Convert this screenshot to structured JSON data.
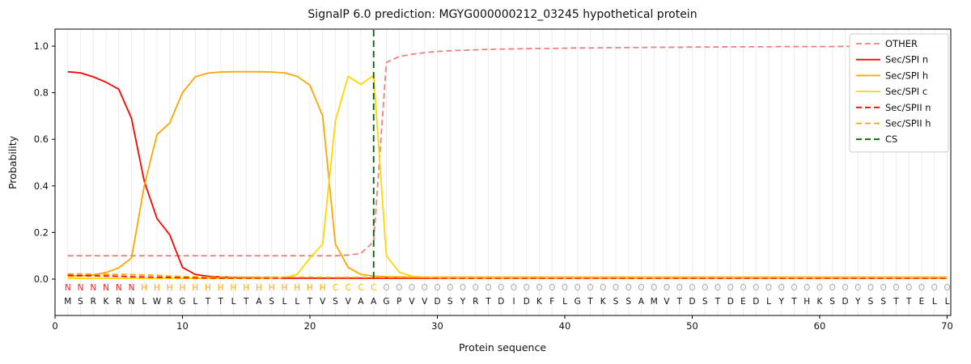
{
  "figure": {
    "title": "SignalP 6.0 prediction: MGYG000000212_03245 hypothetical protein",
    "xlabel": "Protein sequence",
    "ylabel": "Probability"
  },
  "chart_data": {
    "type": "line",
    "title": "SignalP 6.0 prediction: MGYG000000212_03245 hypothetical protein",
    "xlabel": "Protein sequence",
    "ylabel": "Probability",
    "xlim": [
      0,
      70.3
    ],
    "ylim": [
      0,
      1.05
    ],
    "x_ticks": [
      0,
      10,
      20,
      30,
      40,
      50,
      60,
      70
    ],
    "y_ticks": [
      0,
      0.2,
      0.4,
      0.6,
      0.8,
      1.0
    ],
    "grid": "light vertical gridline at every residue position",
    "legend_position": "upper right",
    "x": [
      1,
      2,
      3,
      4,
      5,
      6,
      7,
      8,
      9,
      10,
      11,
      12,
      13,
      14,
      15,
      16,
      17,
      18,
      19,
      20,
      21,
      22,
      23,
      24,
      25,
      26,
      27,
      28,
      29,
      30,
      31,
      32,
      33,
      34,
      35,
      36,
      37,
      38,
      39,
      40,
      41,
      42,
      43,
      44,
      45,
      46,
      47,
      48,
      49,
      50,
      51,
      52,
      53,
      54,
      55,
      56,
      57,
      58,
      59,
      60,
      61,
      62,
      63,
      64,
      65,
      66,
      67,
      68,
      69,
      70
    ],
    "series": [
      {
        "name": "OTHER",
        "style": "dashed",
        "color": "#f08080",
        "values": [
          0.1,
          0.1,
          0.1,
          0.1,
          0.1,
          0.1,
          0.1,
          0.1,
          0.1,
          0.1,
          0.1,
          0.1,
          0.1,
          0.1,
          0.1,
          0.1,
          0.1,
          0.1,
          0.1,
          0.1,
          0.1,
          0.1,
          0.103,
          0.11,
          0.16,
          0.93,
          0.955,
          0.965,
          0.972,
          0.977,
          0.98,
          0.982,
          0.984,
          0.986,
          0.987,
          0.988,
          0.989,
          0.99,
          0.99,
          0.991,
          0.992,
          0.992,
          0.993,
          0.993,
          0.994,
          0.994,
          0.995,
          0.995,
          0.995,
          0.996,
          0.996,
          0.996,
          0.997,
          0.997,
          0.997,
          0.997,
          0.998,
          0.998,
          0.998,
          0.998,
          0.998,
          0.999,
          0.999,
          0.999,
          0.999,
          0.999,
          0.999,
          0.999,
          0.999,
          0.999
        ]
      },
      {
        "name": "Sec/SPI n",
        "style": "solid",
        "color": "#ff0000",
        "values": [
          0.89,
          0.885,
          0.868,
          0.845,
          0.815,
          0.69,
          0.42,
          0.26,
          0.19,
          0.05,
          0.02,
          0.012,
          0.009,
          0.007,
          0.006,
          0.005,
          0.005,
          0.004,
          0.004,
          0.004,
          0.004,
          0.004,
          0.004,
          0.004,
          0.004,
          0.004,
          0.004,
          0.004,
          0.004,
          0.004,
          0.004,
          0.004,
          0.004,
          0.004,
          0.004,
          0.004,
          0.004,
          0.004,
          0.004,
          0.004,
          0.004,
          0.004,
          0.004,
          0.004,
          0.004,
          0.004,
          0.004,
          0.004,
          0.004,
          0.004,
          0.004,
          0.004,
          0.004,
          0.004,
          0.004,
          0.004,
          0.004,
          0.004,
          0.004,
          0.004,
          0.004,
          0.004,
          0.004,
          0.004,
          0.004,
          0.004,
          0.004,
          0.004,
          0.004,
          0.004
        ]
      },
      {
        "name": "Sec/SPI h",
        "style": "solid",
        "color": "#ffa500",
        "values": [
          0.012,
          0.014,
          0.018,
          0.028,
          0.048,
          0.09,
          0.4,
          0.62,
          0.67,
          0.8,
          0.868,
          0.884,
          0.889,
          0.89,
          0.89,
          0.89,
          0.889,
          0.885,
          0.87,
          0.832,
          0.7,
          0.15,
          0.05,
          0.02,
          0.013,
          0.01,
          0.009,
          0.008,
          0.008,
          0.008,
          0.008,
          0.008,
          0.008,
          0.008,
          0.008,
          0.008,
          0.008,
          0.008,
          0.008,
          0.008,
          0.008,
          0.008,
          0.008,
          0.008,
          0.008,
          0.008,
          0.008,
          0.008,
          0.008,
          0.008,
          0.008,
          0.008,
          0.008,
          0.008,
          0.008,
          0.008,
          0.008,
          0.008,
          0.008,
          0.008,
          0.008,
          0.008,
          0.008,
          0.008,
          0.008,
          0.008,
          0.008,
          0.008,
          0.008,
          0.008
        ]
      },
      {
        "name": "Sec/SPI c",
        "style": "solid",
        "color": "#ffd700",
        "values": [
          0.003,
          0.003,
          0.003,
          0.003,
          0.003,
          0.003,
          0.003,
          0.003,
          0.003,
          0.003,
          0.003,
          0.003,
          0.003,
          0.003,
          0.003,
          0.003,
          0.004,
          0.006,
          0.02,
          0.09,
          0.15,
          0.68,
          0.87,
          0.835,
          0.875,
          0.1,
          0.03,
          0.012,
          0.008,
          0.006,
          0.005,
          0.005,
          0.005,
          0.005,
          0.005,
          0.005,
          0.005,
          0.005,
          0.005,
          0.005,
          0.005,
          0.005,
          0.005,
          0.005,
          0.005,
          0.005,
          0.005,
          0.005,
          0.005,
          0.005,
          0.005,
          0.005,
          0.005,
          0.005,
          0.005,
          0.005,
          0.005,
          0.005,
          0.005,
          0.005,
          0.005,
          0.005,
          0.005,
          0.005,
          0.005,
          0.005,
          0.005,
          0.005,
          0.005,
          0.005
        ]
      },
      {
        "name": "Sec/SPII n",
        "style": "dashed",
        "color": "#ff0000",
        "values": [
          0.016,
          0.015,
          0.014,
          0.013,
          0.012,
          0.01,
          0.009,
          0.008,
          0.007,
          0.006,
          0.005,
          0.005,
          0.004,
          0.004,
          0.004,
          0.004,
          0.004,
          0.004,
          0.004,
          0.004,
          0.004,
          0.004,
          0.004,
          0.004,
          0.004,
          0.004,
          0.004,
          0.004,
          0.004,
          0.004,
          0.004,
          0.004,
          0.004,
          0.004,
          0.004,
          0.004,
          0.004,
          0.004,
          0.004,
          0.004,
          0.004,
          0.004,
          0.004,
          0.004,
          0.004,
          0.004,
          0.004,
          0.004,
          0.004,
          0.004,
          0.004,
          0.004,
          0.004,
          0.004,
          0.004,
          0.004,
          0.004,
          0.004,
          0.004,
          0.004,
          0.004,
          0.004,
          0.004,
          0.004,
          0.004,
          0.004,
          0.004,
          0.004,
          0.004,
          0.004
        ]
      },
      {
        "name": "Sec/SPII h",
        "style": "dashed",
        "color": "#ffa500",
        "values": [
          0.022,
          0.022,
          0.021,
          0.02,
          0.02,
          0.019,
          0.018,
          0.016,
          0.013,
          0.011,
          0.01,
          0.009,
          0.009,
          0.008,
          0.008,
          0.008,
          0.008,
          0.008,
          0.008,
          0.008,
          0.007,
          0.007,
          0.007,
          0.007,
          0.007,
          0.007,
          0.007,
          0.007,
          0.007,
          0.007,
          0.007,
          0.007,
          0.007,
          0.007,
          0.007,
          0.007,
          0.007,
          0.007,
          0.007,
          0.007,
          0.007,
          0.007,
          0.007,
          0.007,
          0.007,
          0.007,
          0.007,
          0.007,
          0.007,
          0.007,
          0.007,
          0.007,
          0.007,
          0.007,
          0.007,
          0.007,
          0.007,
          0.007,
          0.007,
          0.007,
          0.007,
          0.007,
          0.007,
          0.007,
          0.007,
          0.007,
          0.007,
          0.007,
          0.007,
          0.007
        ]
      }
    ],
    "cs_line": {
      "name": "CS",
      "x": 25,
      "style": "dashed",
      "color": "#006400"
    },
    "sequence": [
      "M",
      "S",
      "R",
      "K",
      "R",
      "N",
      "L",
      "W",
      "R",
      "G",
      "L",
      "T",
      "T",
      "L",
      "T",
      "A",
      "S",
      "L",
      "L",
      "T",
      "V",
      "S",
      "V",
      "A",
      "A",
      "G",
      "P",
      "V",
      "V",
      "D",
      "S",
      "Y",
      "R",
      "T",
      "D",
      "I",
      "D",
      "K",
      "F",
      "L",
      "G",
      "T",
      "K",
      "S",
      "S",
      "A",
      "M",
      "V",
      "T",
      "D",
      "S",
      "T",
      "D",
      "E",
      "D",
      "L",
      "Y",
      "T",
      "H",
      "K",
      "S",
      "D",
      "Y",
      "S",
      "S",
      "T",
      "T",
      "E",
      "L",
      "L"
    ],
    "regions": [
      {
        "label": "N",
        "start": 1,
        "end": 6,
        "color": "#ff2020"
      },
      {
        "label": "H",
        "start": 7,
        "end": 21,
        "color": "#ffa500"
      },
      {
        "label": "C",
        "start": 22,
        "end": 25,
        "color": "#f0c000"
      },
      {
        "label": "O",
        "start": 26,
        "end": 70,
        "color": "#aaaaaa"
      }
    ]
  }
}
